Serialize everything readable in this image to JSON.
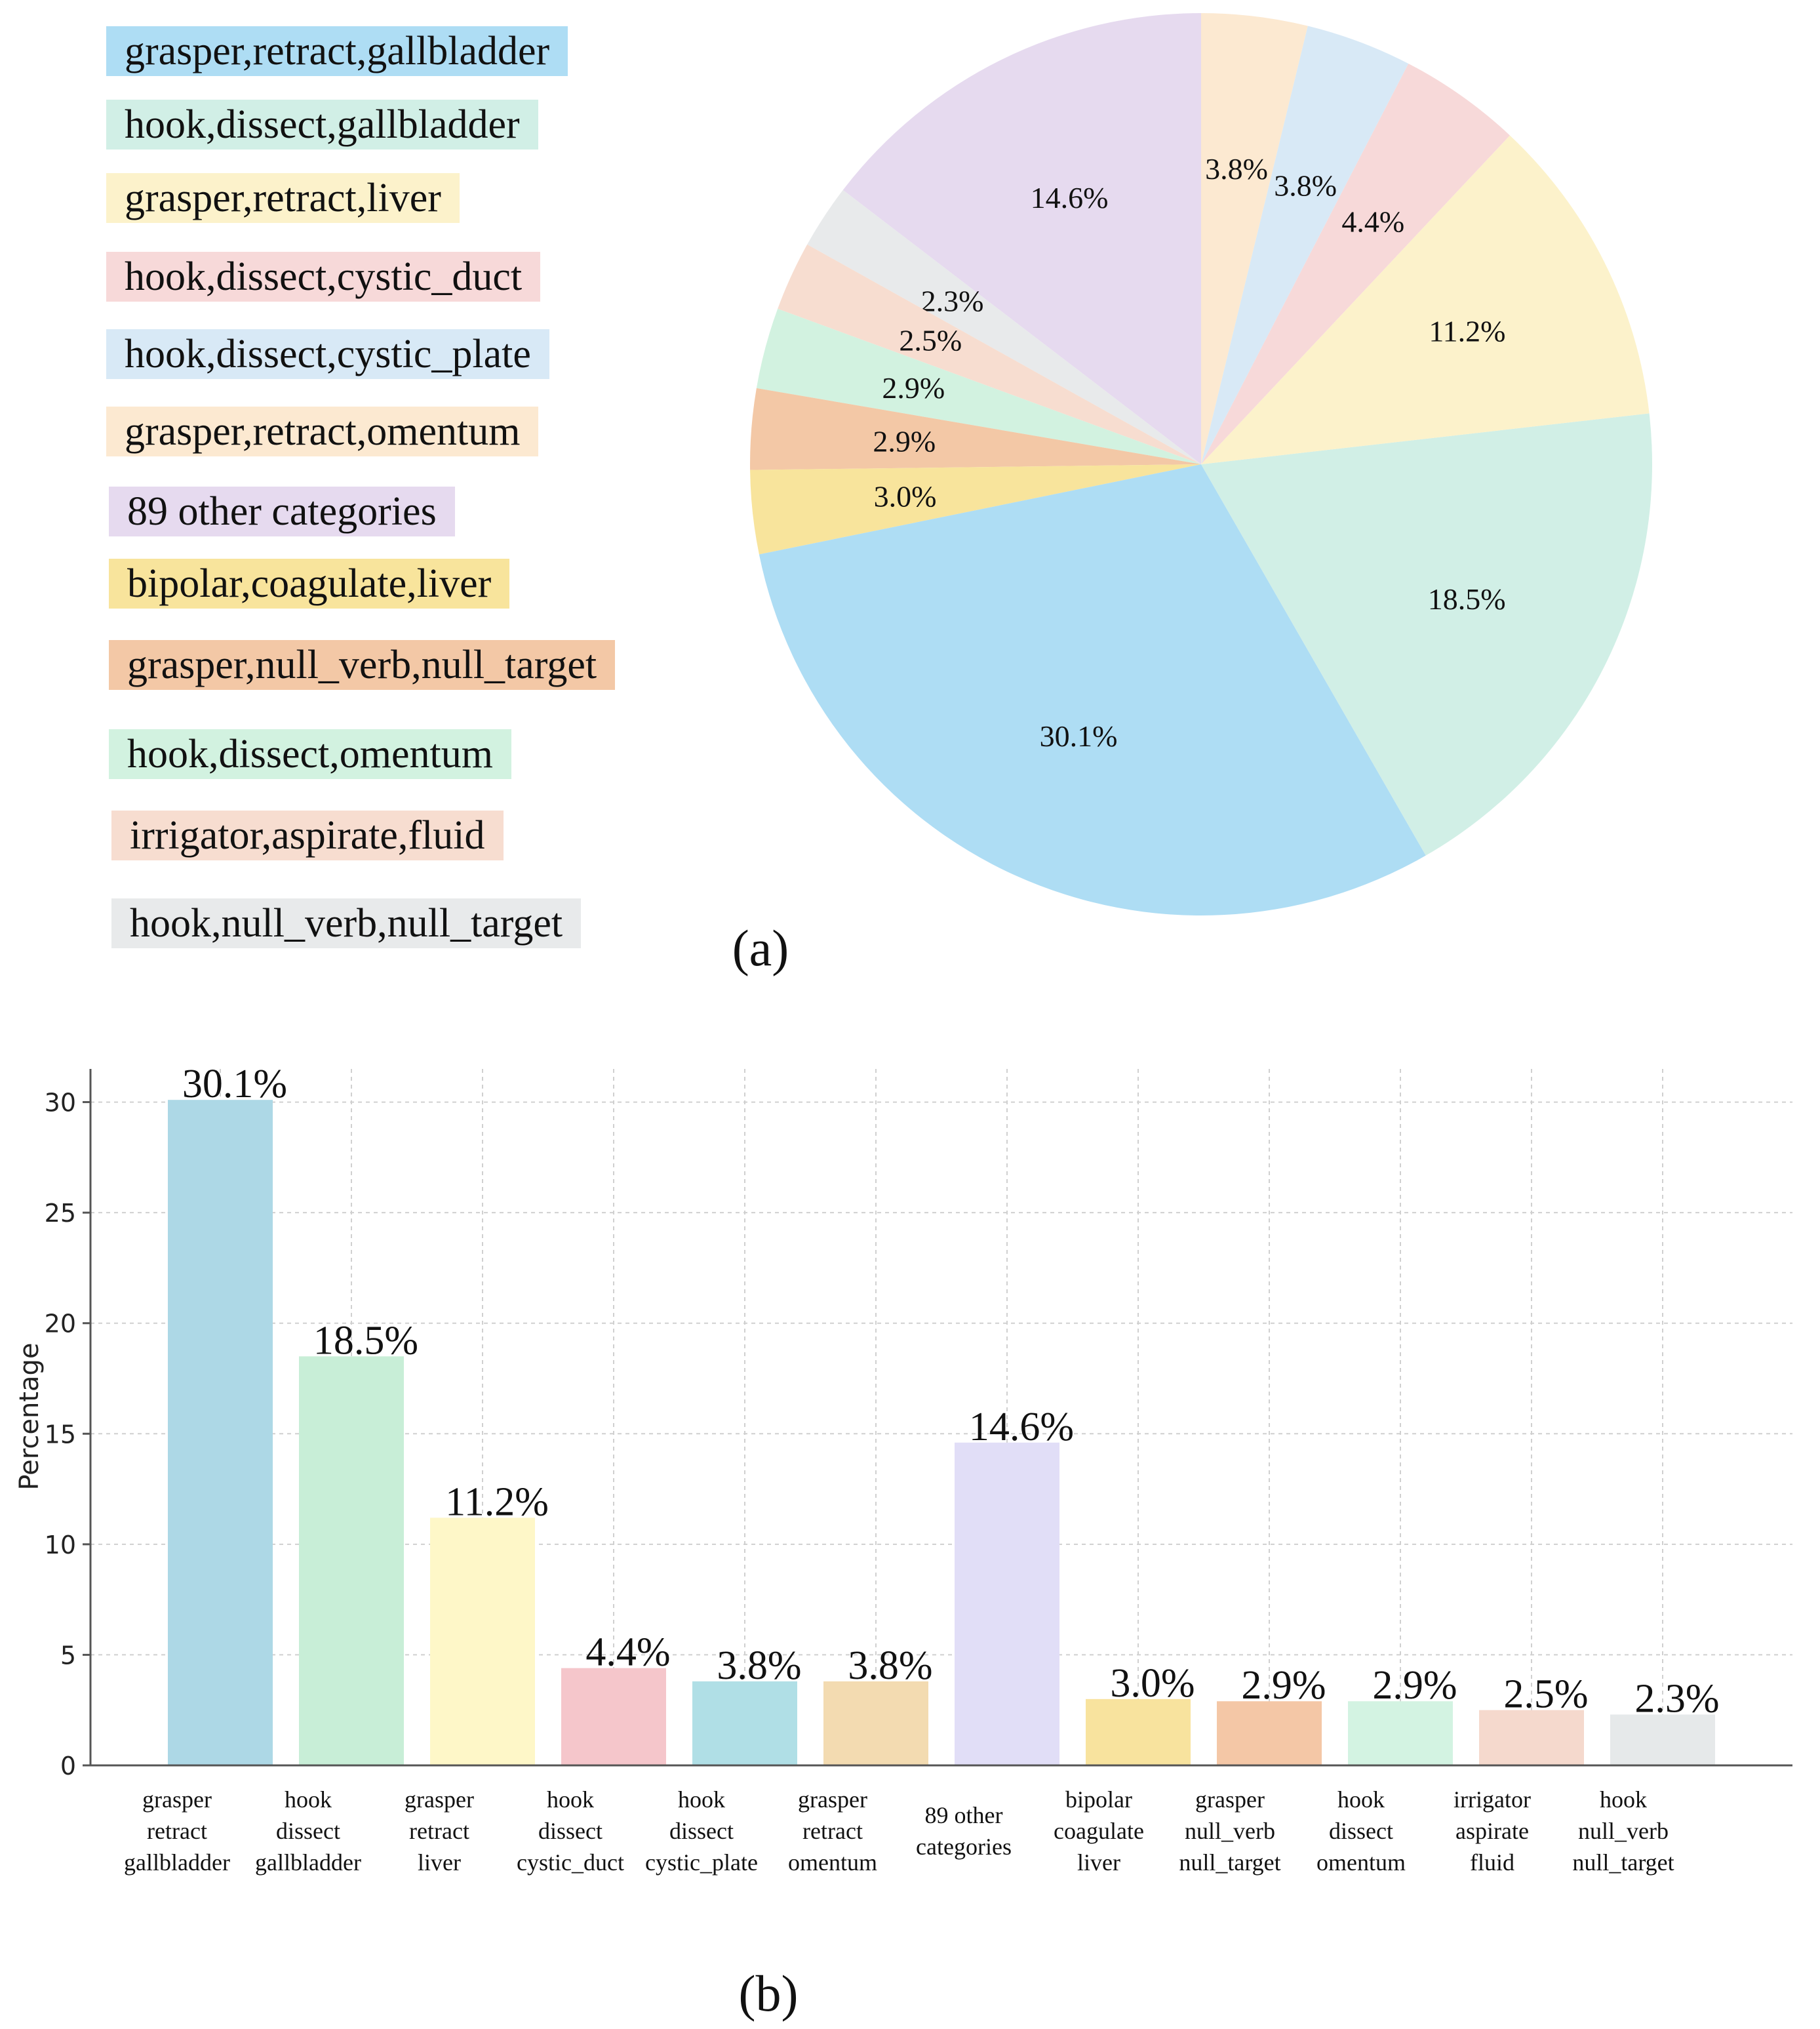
{
  "chart_data": [
    {
      "type": "pie",
      "panel_label": "(a)",
      "start": "12 o'clock",
      "direction": "counterclockwise",
      "slices": [
        {
          "label": "89 other categories",
          "value": 14.6,
          "text": "14.6%",
          "color": "#E6DAEF"
        },
        {
          "label": "hook,null_verb,null_target",
          "value": 2.3,
          "text": "2.3%",
          "color": "#E8EAEB"
        },
        {
          "label": "irrigator,aspirate,fluid",
          "value": 2.5,
          "text": "2.5%",
          "color": "#F7DDD0"
        },
        {
          "label": "hook,dissect,omentum",
          "value": 2.9,
          "text": "2.9%",
          "color": "#D2F2E0"
        },
        {
          "label": "grasper,null_verb,null_target",
          "value": 2.9,
          "text": "2.9%",
          "color": "#F3C8A6"
        },
        {
          "label": "bipolar,coagulate,liver",
          "value": 3.0,
          "text": "3.0%",
          "color": "#F8E49C"
        },
        {
          "label": "grasper,retract,gallbladder",
          "value": 30.1,
          "text": "30.1%",
          "color": "#AEDDF4"
        },
        {
          "label": "hook,dissect,gallbladder",
          "value": 18.5,
          "text": "18.5%",
          "color": "#D1EFE6"
        },
        {
          "label": "grasper,retract,liver",
          "value": 11.2,
          "text": "11.2%",
          "color": "#FCF2CB"
        },
        {
          "label": "hook,dissect,cystic_duct",
          "value": 4.4,
          "text": "4.4%",
          "color": "#F7D9D9"
        },
        {
          "label": "hook,dissect,cystic_plate",
          "value": 3.8,
          "text": "3.8%",
          "color": "#D8E9F6"
        },
        {
          "label": "grasper,retract,omentum",
          "value": 3.8,
          "text": "3.8%",
          "color": "#FCE9D1"
        }
      ],
      "legend": [
        {
          "label": "grasper,retract,gallbladder",
          "color": "#AEDDF4"
        },
        {
          "label": "hook,dissect,gallbladder",
          "color": "#D1EFE6"
        },
        {
          "label": "grasper,retract,liver",
          "color": "#FCF2CB"
        },
        {
          "label": "hook,dissect,cystic_duct",
          "color": "#F7D9D9"
        },
        {
          "label": "hook,dissect,cystic_plate",
          "color": "#D8E9F6"
        },
        {
          "label": "grasper,retract,omentum",
          "color": "#FCE9D1"
        },
        {
          "label": "89 other categories",
          "color": "#E6DAEF"
        },
        {
          "label": "bipolar,coagulate,liver",
          "color": "#F8E49C"
        },
        {
          "label": "grasper,null_verb,null_target",
          "color": "#F3C8A6"
        },
        {
          "label": "hook,dissect,omentum",
          "color": "#D2F2E0"
        },
        {
          "label": "irrigator,aspirate,fluid",
          "color": "#F7DDD0"
        },
        {
          "label": "hook,null_verb,null_target",
          "color": "#E8EAEB"
        }
      ]
    },
    {
      "type": "bar",
      "panel_label": "(b)",
      "ylabel": "Percentage",
      "xlabel": "",
      "ylim": [
        0,
        31.5
      ],
      "yticks": [
        0,
        5,
        10,
        15,
        20,
        25,
        30
      ],
      "grid": true,
      "categories": [
        [
          "grasper",
          "retract",
          "gallbladder"
        ],
        [
          "hook",
          "dissect",
          "gallbladder"
        ],
        [
          "grasper",
          "retract",
          "liver"
        ],
        [
          "hook",
          "dissect",
          "cystic_duct"
        ],
        [
          "hook",
          "dissect",
          "cystic_plate"
        ],
        [
          "grasper",
          "retract",
          "omentum"
        ],
        [
          "89 other",
          "categories"
        ],
        [
          "bipolar",
          "coagulate",
          "liver"
        ],
        [
          "grasper",
          "null_verb",
          "null_target"
        ],
        [
          "hook",
          "dissect",
          "omentum"
        ],
        [
          "irrigator",
          "aspirate",
          "fluid"
        ],
        [
          "hook",
          "null_verb",
          "null_target"
        ]
      ],
      "values": [
        30.1,
        18.5,
        11.2,
        4.4,
        3.8,
        3.8,
        14.6,
        3.0,
        2.9,
        2.9,
        2.5,
        2.3
      ],
      "value_labels": [
        "30.1%",
        "18.5%",
        "11.2%",
        "4.4%",
        "3.8%",
        "3.8%",
        "14.6%",
        "3.0%",
        "2.9%",
        "2.9%",
        "2.5%",
        "2.3%"
      ],
      "colors": [
        "#ADD8E6",
        "#C8EED7",
        "#FEF7C8",
        "#F5C6CB",
        "#B0DFE6",
        "#F3DBB1",
        "#E1DEF7",
        "#F8E39E",
        "#F4C7A6",
        "#D3F3E2",
        "#F5D9CD",
        "#E6E9EA"
      ]
    }
  ]
}
